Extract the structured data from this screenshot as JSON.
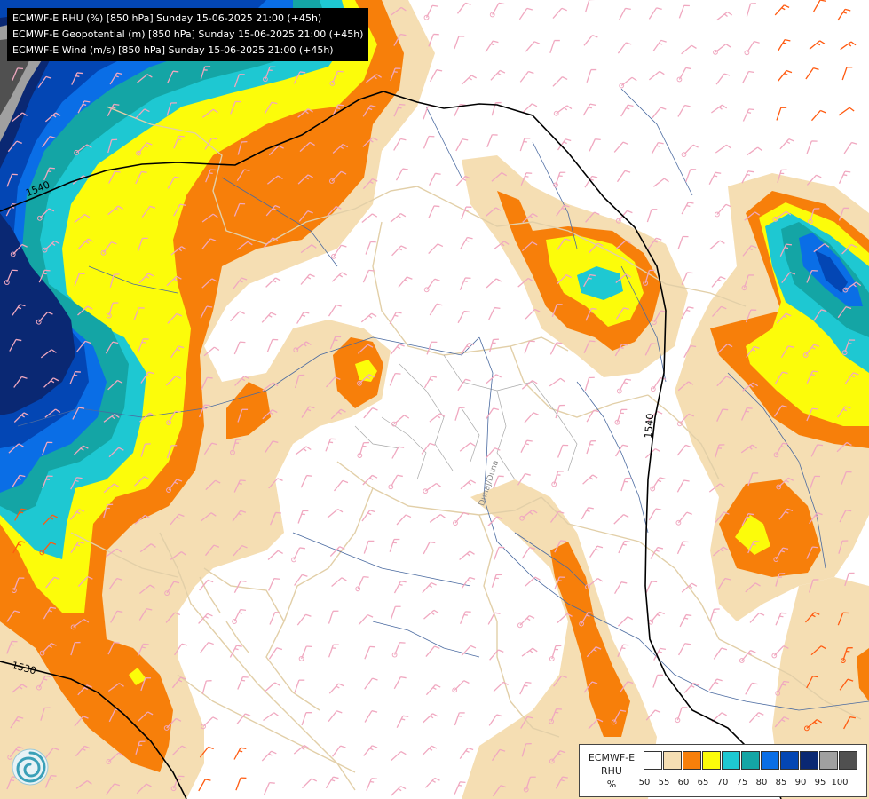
{
  "header": {
    "lines": [
      "ECMWF-E RHU (%) [850 hPa] Sunday 15-06-2025 21:00 (+45h)",
      "ECMWF-E Geopotential (m) [850 hPa] Sunday 15-06-2025 21:00 (+45h)",
      "ECMWF-E Wind (m/s) [850 hPa] Sunday 15-06-2025 21:00 (+45h)"
    ]
  },
  "legend": {
    "title_lines": [
      "ECMWF-E",
      "RHU",
      "%"
    ],
    "labels": [
      "50",
      "55",
      "60",
      "65",
      "70",
      "75",
      "80",
      "85",
      "90",
      "95",
      "100"
    ],
    "colors": [
      "#ffffff",
      "#f5deb3",
      "#f77f0a",
      "#fcfc0a",
      "#1ec8d2",
      "#14a5a5",
      "#0a6ee6",
      "#0346b4",
      "#0a2873",
      "#a0a0a0",
      "#505050"
    ]
  },
  "contours": {
    "labels": [
      "1540",
      "1540",
      "1530"
    ]
  },
  "map_labels": {
    "river": "Dunaj/Duna"
  },
  "logo": {
    "icon": "ecmwf-swirl-logo-icon"
  }
}
